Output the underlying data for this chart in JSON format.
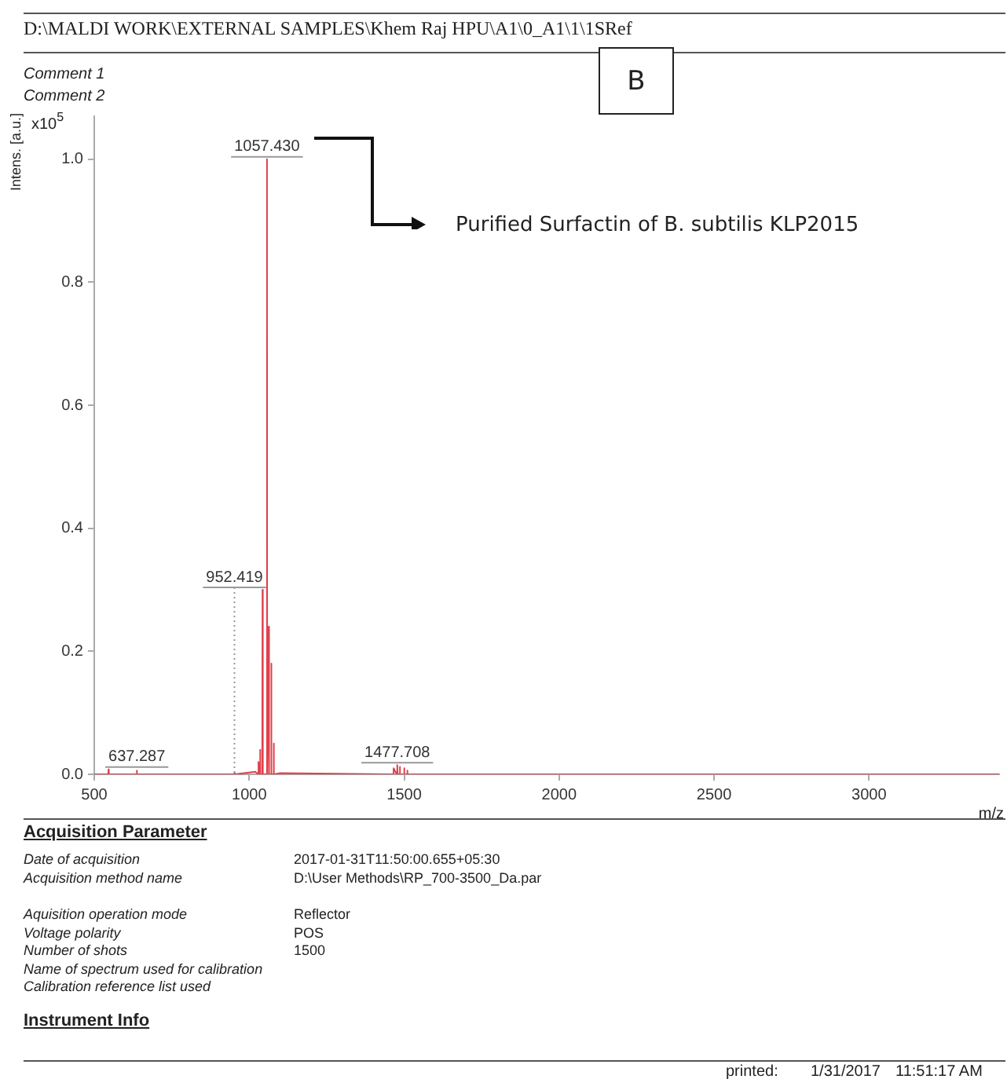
{
  "chart_data": {
    "type": "line",
    "xlabel": "m/z",
    "ylabel": "Intens. [a.u.]",
    "color": "#e0404c",
    "grid": false,
    "legend": false,
    "marker": "none",
    "line_style": "solid",
    "x": [
      500,
      545,
      546,
      547,
      637,
      637.287,
      638,
      900,
      952,
      952.419,
      953,
      1020,
      1029,
      1030,
      1034,
      1035,
      1036,
      1042,
      1043,
      1044,
      1056,
      1057.43,
      1058,
      1062,
      1063,
      1064,
      1070,
      1071,
      1072,
      1078,
      1079,
      1080,
      1100,
      1460,
      1465,
      1466,
      1476,
      1477.708,
      1479,
      1485,
      1486,
      1487,
      1499,
      1500,
      1501,
      1509,
      1510,
      1511,
      1600,
      3420
    ],
    "values": [
      0,
      0,
      0.008,
      0,
      0,
      0.006,
      0,
      0,
      0,
      0.003,
      0,
      0.004,
      0,
      0.02,
      0,
      0.04,
      0,
      0,
      0.3,
      0,
      0,
      1.0,
      0,
      0,
      0.24,
      0,
      0,
      0.18,
      0,
      0,
      0.05,
      0,
      0.002,
      0,
      0,
      0.01,
      0,
      0.015,
      0,
      0,
      0.012,
      0,
      0,
      0.01,
      0,
      0,
      0.006,
      0,
      0,
      0
    ],
    "xlim": [
      500,
      3420
    ],
    "xticks": [
      500,
      1000,
      1500,
      2000,
      2500,
      3000
    ],
    "ylim": [
      0,
      1.07
    ],
    "yticks": [
      {
        "value": 0,
        "label": "0.0"
      },
      {
        "value": 0.2,
        "label": "0.2"
      },
      {
        "value": 0.4,
        "label": "0.4"
      },
      {
        "value": 0.6,
        "label": "0.6"
      },
      {
        "value": 0.8,
        "label": "0.8"
      },
      {
        "value": 1.0,
        "label": "1.0"
      }
    ],
    "annotations": [
      "D:\\MALDI WORK\\EXTERNAL SAMPLES\\Khem Raj HPU\\A1\\0_A1\\1\\1SRef",
      "Comment 1",
      "Comment 2",
      "B",
      "x10$^{5}$",
      "Purified Surfactin of B. subtilis KLP2015",
      {
        "text": "1057.430",
        "x": 1057.43,
        "y": 1.0
      },
      {
        "text": "952.419",
        "x": 952.419,
        "y": 0.003
      },
      {
        "text": "637.287",
        "x": 637.287,
        "y": 0.006
      },
      {
        "text": "1477.708",
        "x": 1477.708,
        "y": 0.015
      },
      "Acquisition Parameter",
      "Date of acquisition",
      "2017-01-31T11:50:00.655+05:30",
      "Acquisition method name",
      "D:\\User Methods\\RP_700-3500_Da.par",
      "Aquisition operation mode",
      "Reflector",
      "Voltage polarity",
      "POS",
      "Number of shots",
      "1500",
      "Name of spectrum used for calibration",
      "Calibration reference list used",
      "Instrument Info",
      "printed:",
      "1/31/2017",
      "11:51:17 AM"
    ]
  }
}
